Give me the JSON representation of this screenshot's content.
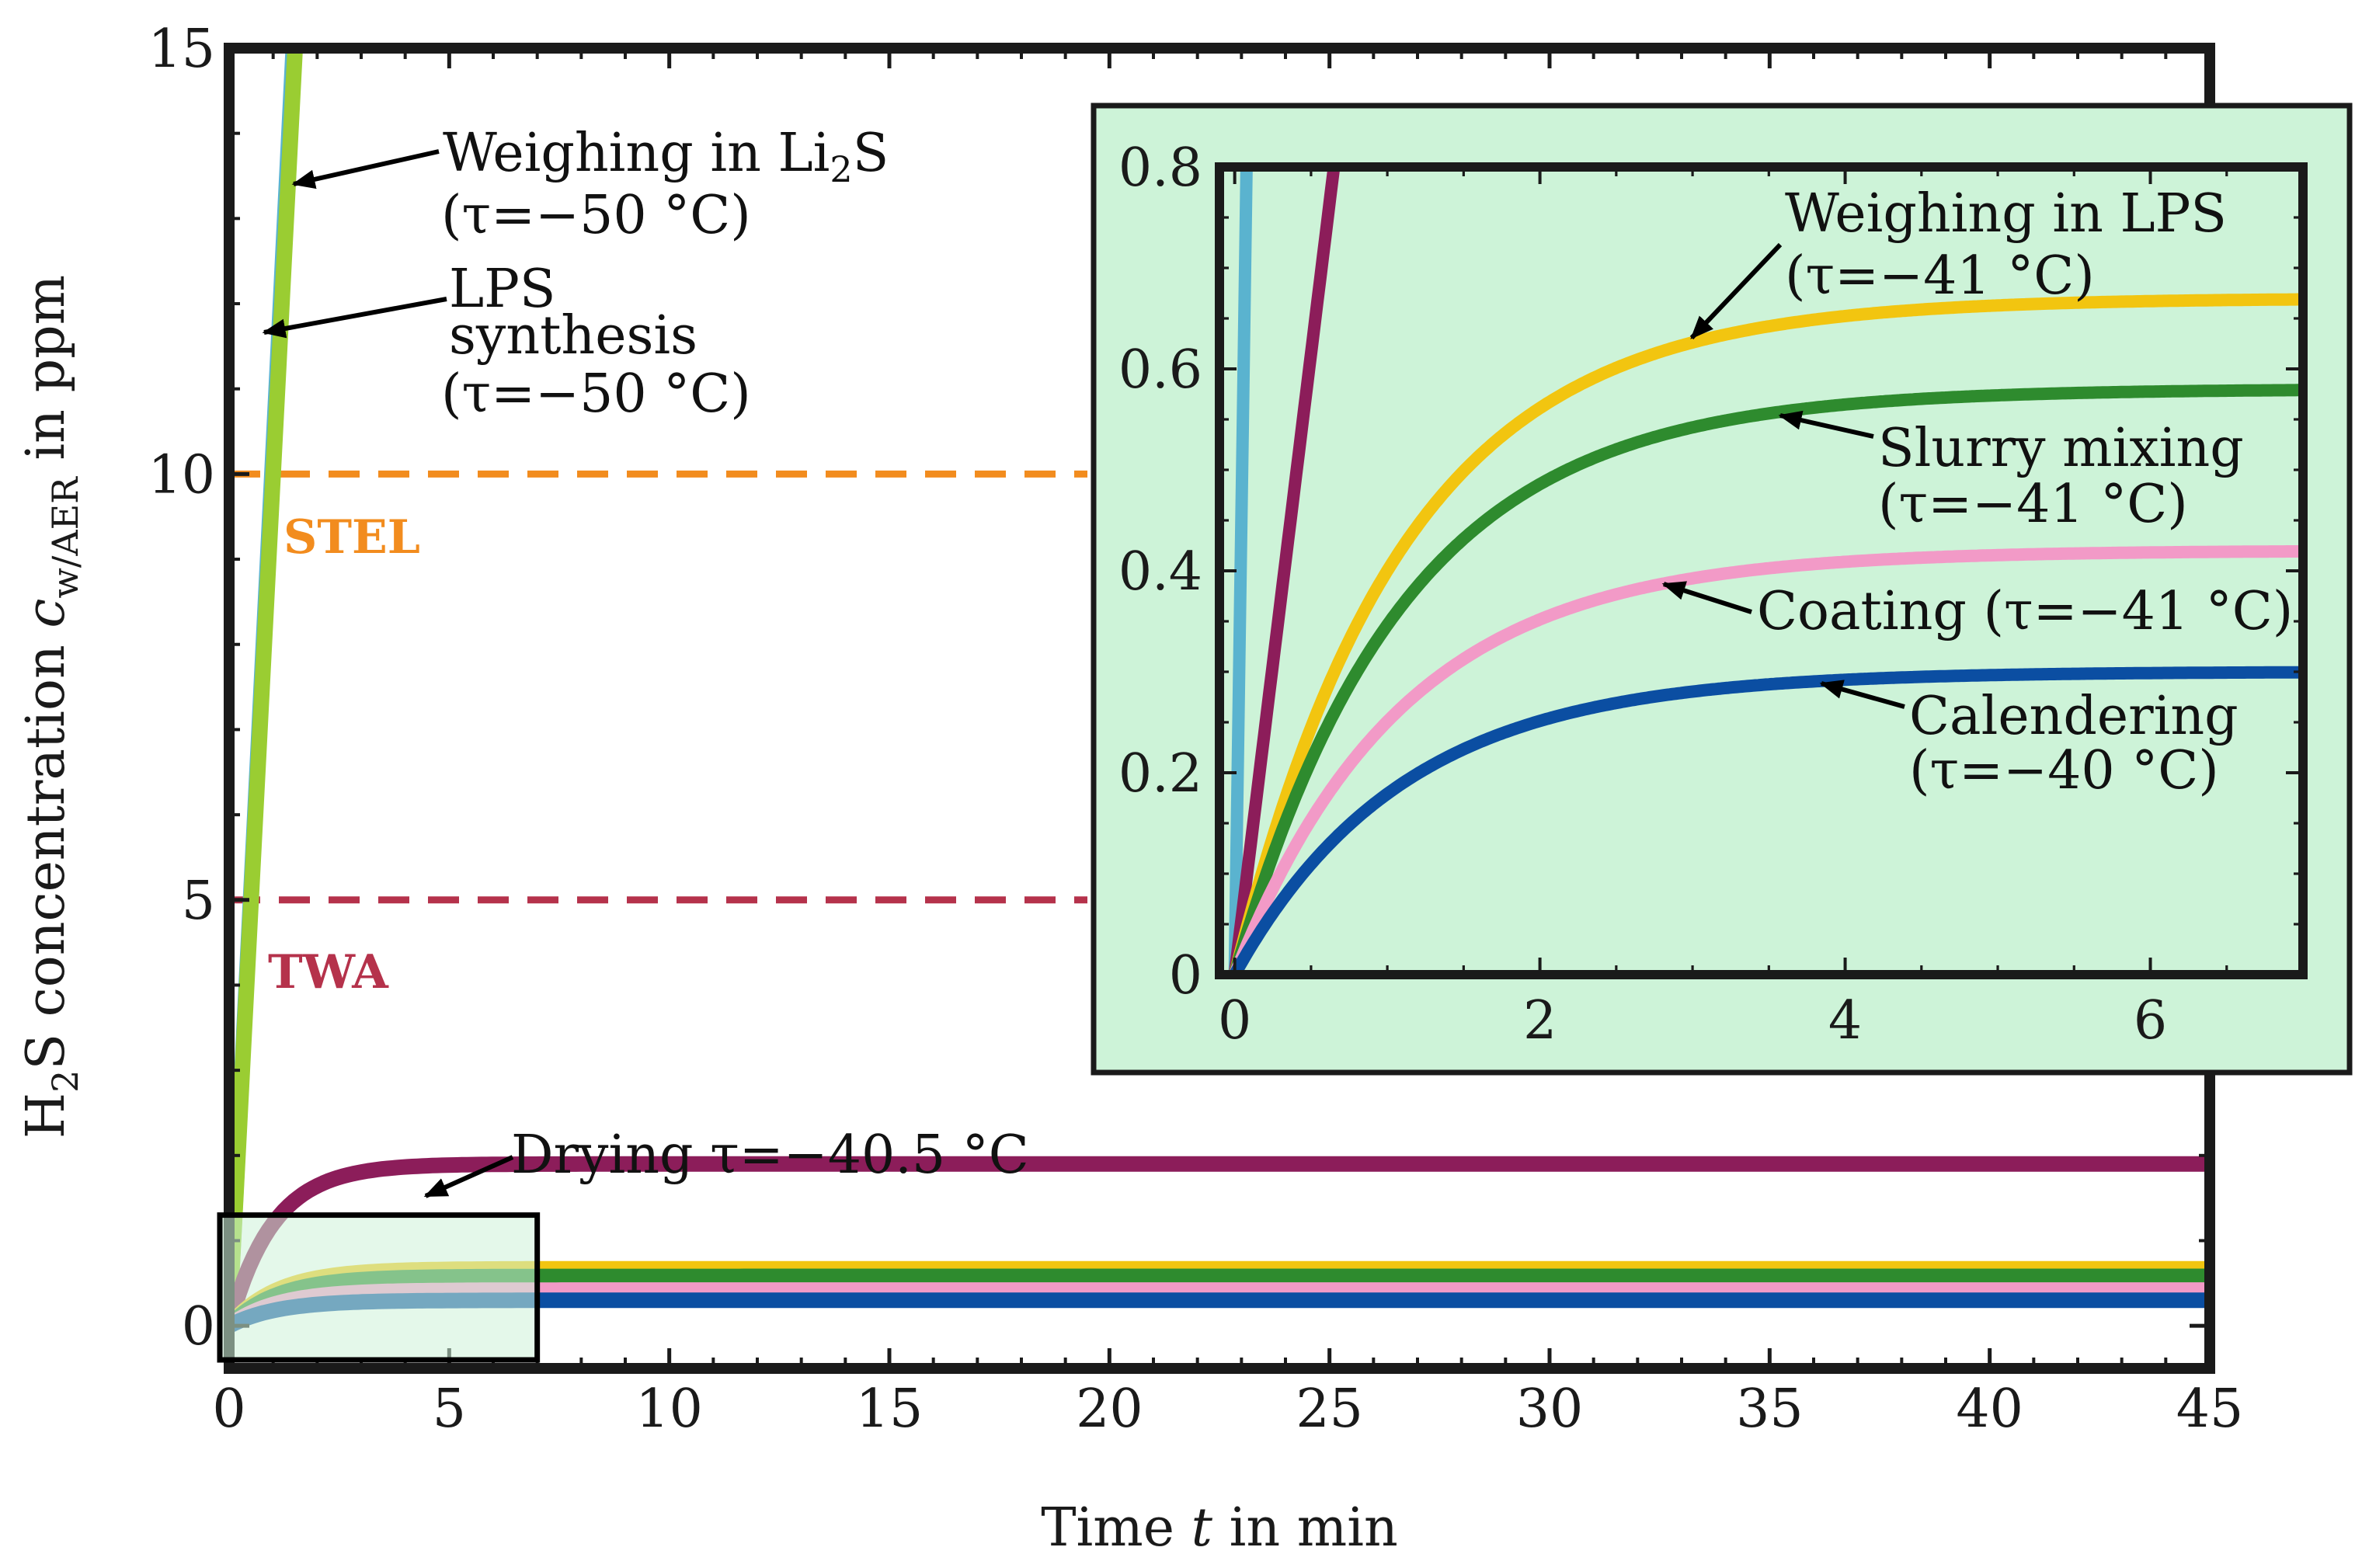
{
  "chart_data": [
    {
      "type": "line",
      "panel": "main",
      "xlabel_prefix": "Time ",
      "xlabel_var": "t",
      "xlabel_suffix": " in min",
      "ylabel_prefix": "H",
      "ylabel_sub1": "2",
      "ylabel_mid": "S concentration ",
      "ylabel_var": "c",
      "ylabel_sub2": "w/AER",
      "ylabel_suffix": " in ppm",
      "xlim": [
        0,
        45
      ],
      "ylim": [
        -0.5,
        15
      ],
      "xticks": [
        "0",
        "5",
        "10",
        "15",
        "20",
        "25",
        "30",
        "35",
        "40",
        "45"
      ],
      "xtick_values": [
        0,
        5,
        10,
        15,
        20,
        25,
        30,
        35,
        40,
        45
      ],
      "yticks": [
        "0",
        "5",
        "10",
        "15"
      ],
      "ytick_values": [
        0,
        5,
        10,
        15
      ],
      "limits": [
        {
          "name": "STEL",
          "value": 10,
          "color": "#F28C1E",
          "x_end": 19.5
        },
        {
          "name": "TWA",
          "value": 5,
          "color": "#B5324B",
          "x_end": 19.5
        }
      ],
      "series": [
        {
          "name": "Weighing in Li2S",
          "type": "linear",
          "slope": 10.3,
          "color": "#5AB3CF"
        },
        {
          "name": "LPS synthesis",
          "type": "linear",
          "slope": 10.0,
          "color": "#9ACD32"
        },
        {
          "name": "Drying",
          "type": "saturating",
          "plateau": 1.9,
          "tau": 1.0,
          "color": "#8C1D5A"
        },
        {
          "name": "Weighing in LPS",
          "type": "saturating",
          "plateau": 0.67,
          "tau": 1.1,
          "color": "#F2C510"
        },
        {
          "name": "Slurry mixing",
          "type": "saturating",
          "plateau": 0.58,
          "tau": 1.1,
          "color": "#2E8B2E"
        },
        {
          "name": "Coating",
          "type": "saturating",
          "plateau": 0.42,
          "tau": 1.1,
          "color": "#F29AC7"
        },
        {
          "name": "Calendering",
          "type": "saturating",
          "plateau": 0.3,
          "tau": 1.1,
          "color": "#0B4EA2"
        }
      ],
      "zoom_box": {
        "x": [
          0,
          7
        ],
        "y": [
          -0.4,
          1.3
        ]
      }
    },
    {
      "type": "line",
      "panel": "inset",
      "xlim": [
        -0.1,
        7
      ],
      "ylim": [
        0,
        0.8
      ],
      "xticks": [
        "0",
        "2",
        "4",
        "6"
      ],
      "xtick_values": [
        0,
        2,
        4,
        6
      ],
      "yticks": [
        "0",
        "0.2",
        "0.4",
        "0.6",
        "0.8"
      ],
      "ytick_values": [
        0,
        0.2,
        0.4,
        0.6,
        0.8
      ],
      "series": [
        {
          "name": "Weighing in Li2S",
          "type": "linear",
          "slope": 10.3,
          "color": "#5AB3CF"
        },
        {
          "name": "Drying",
          "type": "linear",
          "slope": 1.23,
          "color": "#8C1D5A"
        },
        {
          "name": "Weighing in LPS",
          "type": "saturating",
          "plateau": 0.67,
          "tau": 1.1,
          "color": "#F2C510"
        },
        {
          "name": "Slurry mixing",
          "type": "saturating",
          "plateau": 0.58,
          "tau": 1.1,
          "color": "#2E8B2E"
        },
        {
          "name": "Coating",
          "type": "saturating",
          "plateau": 0.42,
          "tau": 1.1,
          "color": "#F29AC7"
        },
        {
          "name": "Calendering",
          "type": "saturating",
          "plateau": 0.3,
          "tau": 1.1,
          "color": "#0B4EA2"
        }
      ]
    }
  ],
  "annotations": {
    "weighing_li2s_a": "Weighing in Li",
    "weighing_li2s_sub": "2",
    "weighing_li2s_b": "S",
    "weighing_li2s_temp": "(τ=−50 °C)",
    "lps_line1": "LPS",
    "lps_line2": "synthesis",
    "lps_temp": "(τ=−50 °C)",
    "drying": "Drying τ=−40.5 °C",
    "weighing_lps": "Weighing in LPS",
    "weighing_lps_temp": "(τ=−41 °C)",
    "slurry": "Slurry mixing",
    "slurry_temp": "(τ=−41 °C)",
    "coating": "Coating (τ=−41 °C)",
    "calendering": "Calendering",
    "calendering_temp": "(τ=−40 °C)"
  },
  "colors": {
    "inset_bg": "#CDF3D8",
    "frame": "#1a1a1a"
  }
}
